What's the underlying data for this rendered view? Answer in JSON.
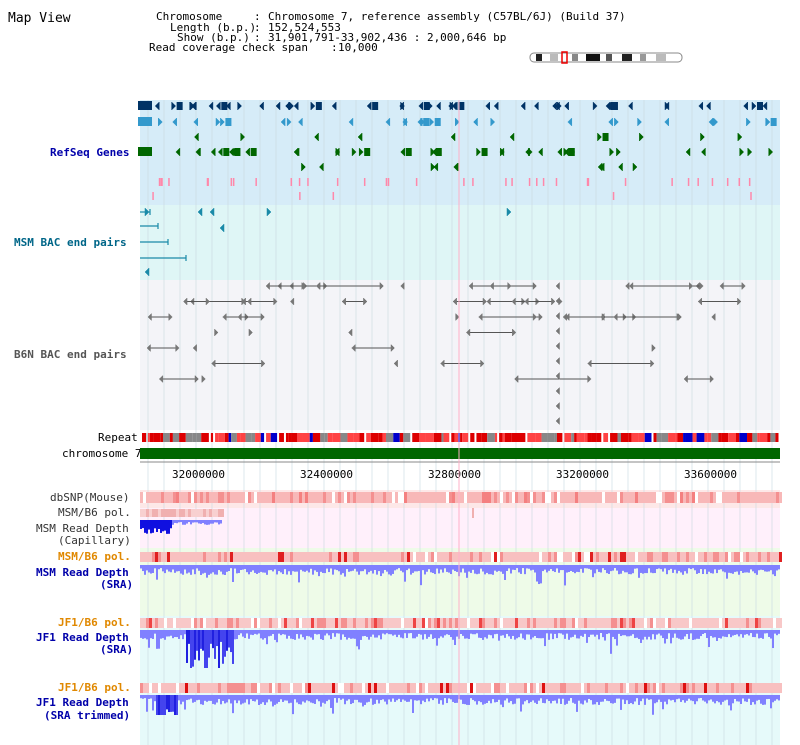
{
  "title": "Map View",
  "header": {
    "rows": [
      {
        "key": "Chromosome",
        "value": "Chromosome 7, reference assembly (C57BL/6J) (Build 37)"
      },
      {
        "key": "Length (b.p.)",
        "value": "152,524,553"
      },
      {
        "key": "Show (b.p.)",
        "value": "31,901,791-33,902,436 : 2,000,646 bp"
      },
      {
        "key": "Read coverage check span",
        "value": "10,000"
      }
    ]
  },
  "tracks": {
    "refseq": "RefSeq Genes",
    "msm_bac": "MSM BAC end pairs",
    "b6n_bac": "B6N BAC end pairs",
    "repeat": "Repeat",
    "chromosome": "chromosome 7",
    "dbsnp": "dbSNP(Mouse)",
    "msm_b6_pol_1": "MSM/B6 pol.",
    "msm_cap_1": "MSM Read Depth",
    "msm_cap_2": "(Capillary)",
    "msm_b6_pol_2": "MSM/B6 pol.",
    "msm_sra_1": "MSM Read Depth",
    "msm_sra_2": "(SRA)",
    "jf1_b6_pol_1": "JF1/B6 pol.",
    "jf1_sra_1": "JF1 Read Depth",
    "jf1_sra_2": "(SRA)",
    "jf1_b6_pol_2": "JF1/B6 pol.",
    "jf1_trim_1": "JF1 Read Depth",
    "jf1_trim_2": "(SRA trimmed)"
  },
  "axis": {
    "ticks": [
      "32000000",
      "32400000",
      "32800000",
      "33200000",
      "33600000"
    ]
  },
  "colors": {
    "refseq_label": "#0000aa",
    "msm_bac_label": "#006688",
    "pol_label": "#e08800",
    "depth_label": "#0000aa",
    "chromosome_bar": "#006600",
    "depth_fill": "#8080ff",
    "depth_dark": "#2020e0",
    "gene_dark": "#003366",
    "gene_mid": "#3399cc",
    "gene_green": "#006600"
  }
}
